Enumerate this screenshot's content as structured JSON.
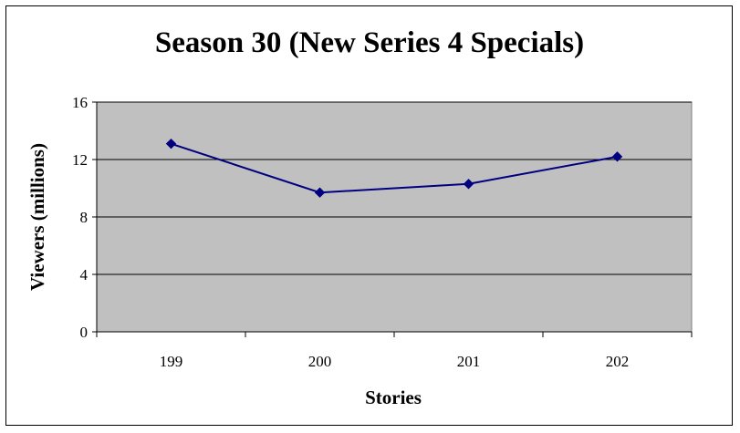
{
  "chart_data": {
    "type": "line",
    "title": "Season 30 (New Series 4 Specials)",
    "xlabel": "Stories",
    "ylabel": "Viewers (millions)",
    "categories": [
      "199",
      "200",
      "201",
      "202"
    ],
    "series": [
      {
        "values": [
          13.1,
          9.7,
          10.3,
          12.2
        ],
        "color": "#000080"
      }
    ],
    "ylim": [
      0,
      16
    ],
    "yticks": [
      0,
      4,
      8,
      12,
      16
    ],
    "grid": true,
    "plot_background": "#c0c0c0",
    "legend": "none"
  }
}
